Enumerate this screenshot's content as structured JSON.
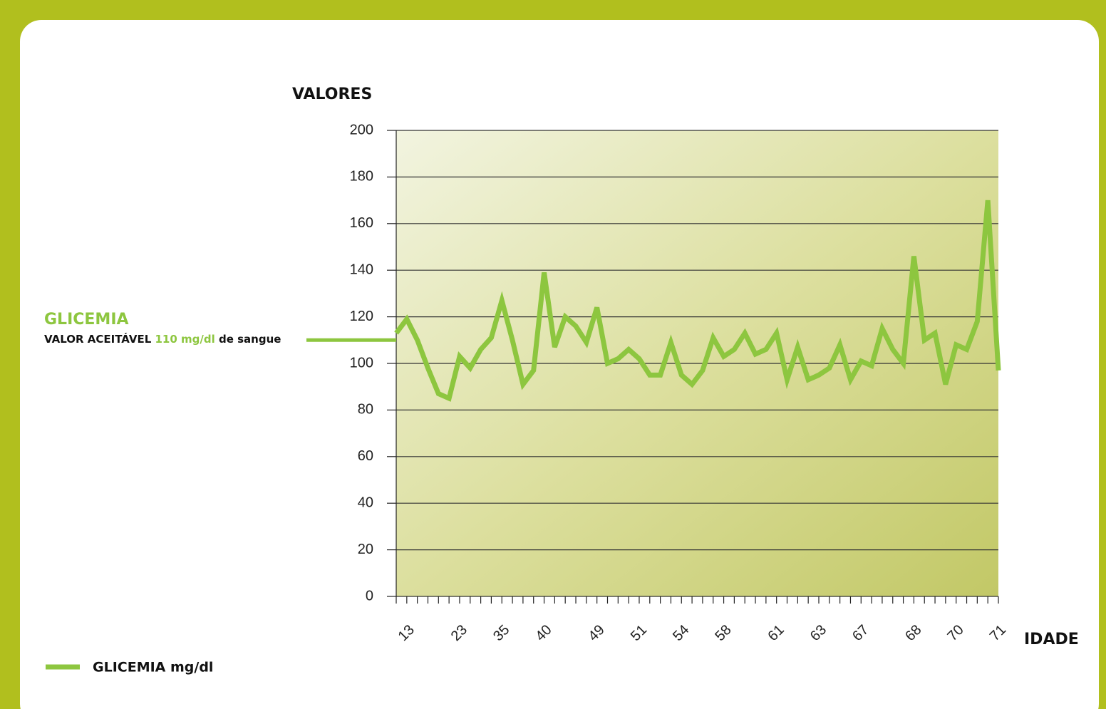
{
  "chart_data": {
    "type": "line",
    "y_label": "VALORES",
    "x_label": "IDADE",
    "categories": [
      null,
      "13",
      null,
      null,
      null,
      null,
      "23",
      null,
      null,
      null,
      "35",
      null,
      null,
      null,
      "40",
      null,
      null,
      null,
      null,
      "49",
      null,
      null,
      null,
      "51",
      null,
      null,
      null,
      "54",
      null,
      null,
      null,
      "58",
      null,
      null,
      null,
      null,
      "61",
      null,
      null,
      null,
      "63",
      null,
      null,
      null,
      "67",
      null,
      null,
      null,
      null,
      "68",
      null,
      null,
      null,
      "70",
      null,
      null,
      null,
      "71"
    ],
    "series": [
      {
        "name": "GLICEMIA mg/dl",
        "color": "#8dc63f",
        "values": [
          113,
          119,
          110,
          98,
          87,
          85,
          103,
          98,
          106,
          111,
          127,
          110,
          91,
          97,
          139,
          107,
          120,
          116,
          109,
          124,
          100,
          102,
          106,
          102,
          95,
          95,
          109,
          95,
          91,
          97,
          111,
          103,
          106,
          113,
          104,
          106,
          113,
          93,
          107,
          93,
          95,
          98,
          108,
          93,
          101,
          99,
          115,
          106,
          100,
          146,
          110,
          113,
          91,
          108,
          106,
          118,
          170,
          97
        ]
      }
    ],
    "ylim": [
      0,
      200
    ],
    "yticks": [
      0,
      20,
      40,
      60,
      80,
      100,
      120,
      140,
      160,
      180,
      200
    ],
    "grid": true,
    "annotation": {
      "title": "GLICEMIA",
      "text_before": "VALOR ACEITÁVEL",
      "highlight": "110 mg/dl",
      "text_after": "de sangue",
      "value": 110
    }
  }
}
